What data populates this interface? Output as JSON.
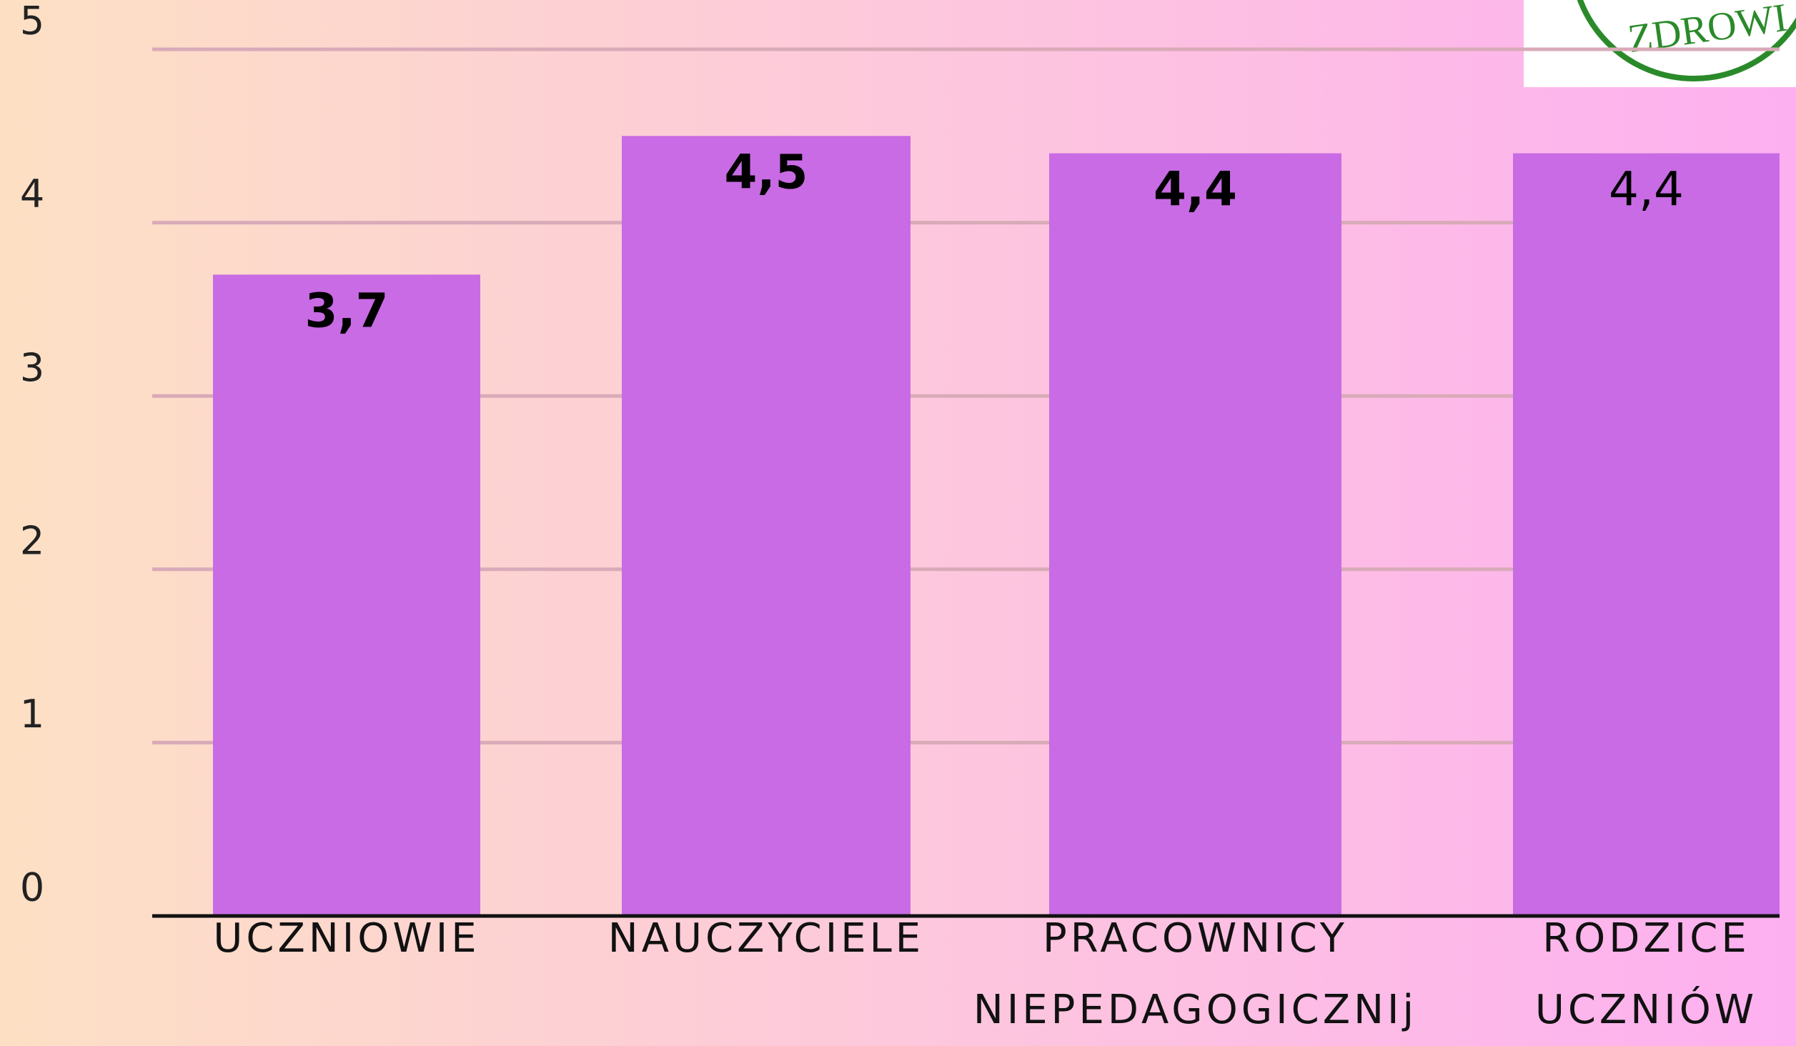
{
  "chart_data": {
    "type": "bar",
    "categories": [
      "UCZNIOWIE",
      "NAUCZYCIELE",
      "PRACOWNICY\nNIEPEDAGOGICZNIj",
      "RODZICE\nUCZNIÓW"
    ],
    "values": [
      3.7,
      4.5,
      4.4,
      4.4
    ],
    "value_labels": [
      "3,7",
      "4,5",
      "4,4",
      "4,4"
    ],
    "color": "#c86be4",
    "ylim": [
      0,
      5
    ],
    "yticks": [
      0,
      1,
      2,
      3,
      4,
      5
    ],
    "grid": true
  },
  "logo": {
    "text": "ZDROWI"
  }
}
